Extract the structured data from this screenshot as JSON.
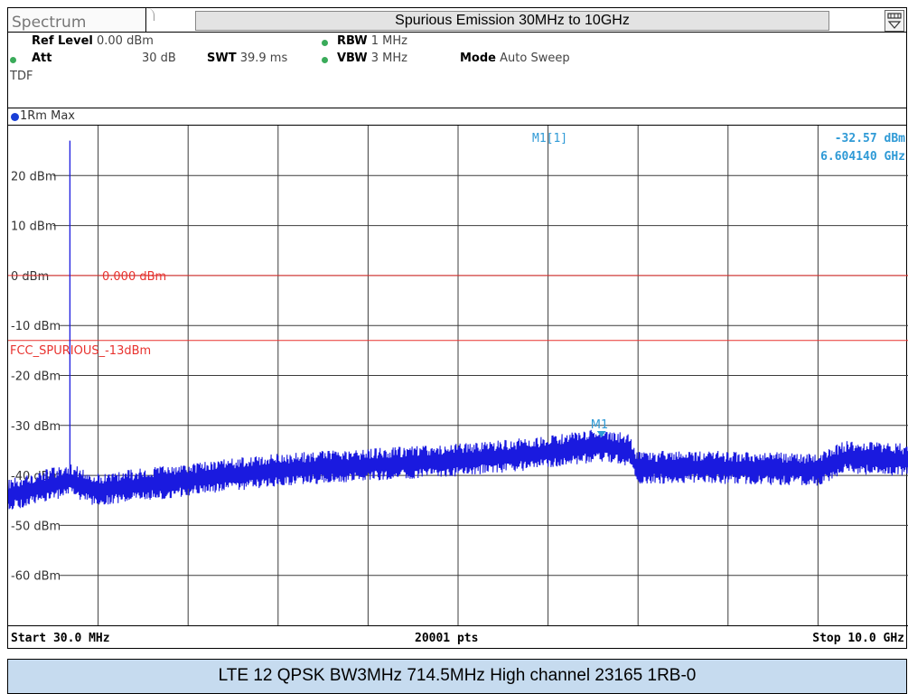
{
  "window": {
    "tab_label": "Spectrum",
    "title": "Spurious Emission 30MHz to 10GHz"
  },
  "settings": {
    "ref_level_label": "Ref Level",
    "ref_level_value": "0.00 dBm",
    "att_label": "Att",
    "att_value": "30 dB",
    "swt_label": "SWT",
    "swt_value": "39.9 ms",
    "rbw_label": "RBW",
    "rbw_value": "1 MHz",
    "vbw_label": "VBW",
    "vbw_value": "3 MHz",
    "mode_label": "Mode",
    "mode_value": "Auto Sweep",
    "tdf": "TDF"
  },
  "trace": {
    "label": "1Rm Max"
  },
  "marker": {
    "name": "M1",
    "readout_label": "M1[1]",
    "level": "-32.57 dBm",
    "frequency": "6.604140 GHz"
  },
  "footer": {
    "start": "Start 30.0 MHz",
    "points": "20001 pts",
    "stop": "Stop 10.0 GHz"
  },
  "caption": "LTE 12 QPSK BW3MHz 714.5MHz High channel 23165 1RB-0",
  "colors": {
    "trace": "#1a1adf",
    "limit_line": "#e8322e",
    "marker": "#2f9ad6",
    "grid": "#3c3c3c"
  },
  "chart_data": {
    "type": "line",
    "xlabel": "",
    "ylabel": "",
    "x_range_ghz": [
      0.03,
      10.0
    ],
    "x_divisions": 10,
    "ylim": [
      -70,
      30
    ],
    "y_ticks": [
      20,
      10,
      0,
      -10,
      -20,
      -30,
      -40,
      -50,
      -60
    ],
    "y_tick_labels": [
      "20 dBm",
      "10 dBm",
      "0 dBm",
      "-10 dBm",
      "-20 dBm",
      "-30 dBm",
      "-40 dBm",
      "-50 dBm",
      "-60 dBm"
    ],
    "reference_lines": [
      {
        "label": "0.000 dBm",
        "value": 0
      },
      {
        "label": "FCC_SPURIOUS_-13dBm",
        "value": -13
      }
    ],
    "series": [
      {
        "x": [
          0.03,
          0.7145,
          1.0,
          2.0,
          3.0,
          4.0,
          5.0,
          6.0,
          6.6,
          6.9,
          7.0,
          8.0,
          9.0,
          9.3,
          10.0
        ],
        "y": [
          -44,
          -41,
          -43,
          -41,
          -39,
          -38,
          -37,
          -35.5,
          -34,
          -35,
          -38.5,
          -38.5,
          -39,
          -36.5,
          -37
        ]
      }
    ],
    "spike": {
      "x": 0.7145,
      "y": 27
    },
    "marker_point": {
      "x": 6.60414,
      "y": -32.57
    }
  }
}
